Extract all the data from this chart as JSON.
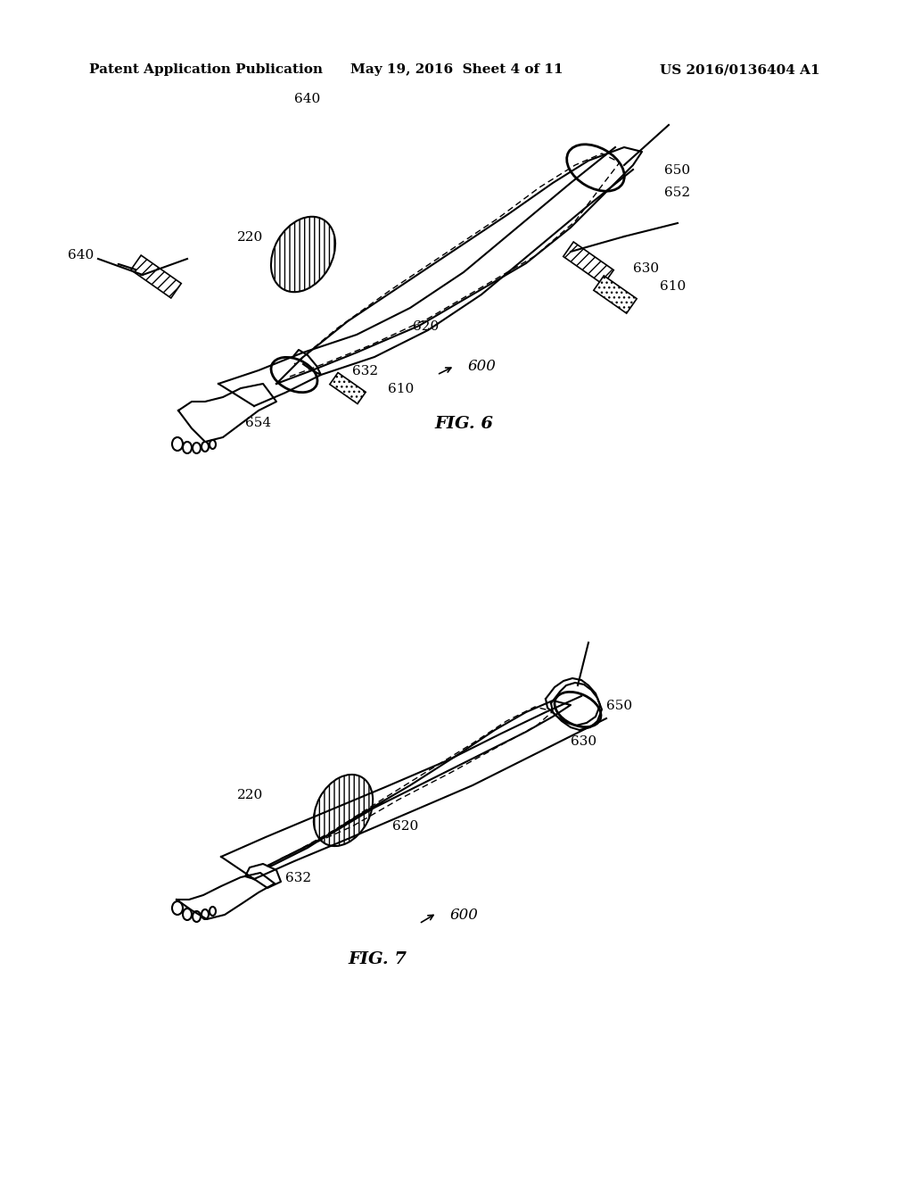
{
  "title_left": "Patent Application Publication",
  "title_mid": "May 19, 2016  Sheet 4 of 11",
  "title_right": "US 2016/0136404 A1",
  "fig6_label": "FIG. 6",
  "fig7_label": "FIG. 7",
  "ref600": "600",
  "ref610": "610",
  "ref620": "620",
  "ref630": "630",
  "ref632": "632",
  "ref640": "640",
  "ref650": "650",
  "ref652": "652",
  "ref654": "654",
  "ref220": "220",
  "background": "#ffffff",
  "line_color": "#000000",
  "title_fontsize": 11,
  "label_fontsize": 11
}
